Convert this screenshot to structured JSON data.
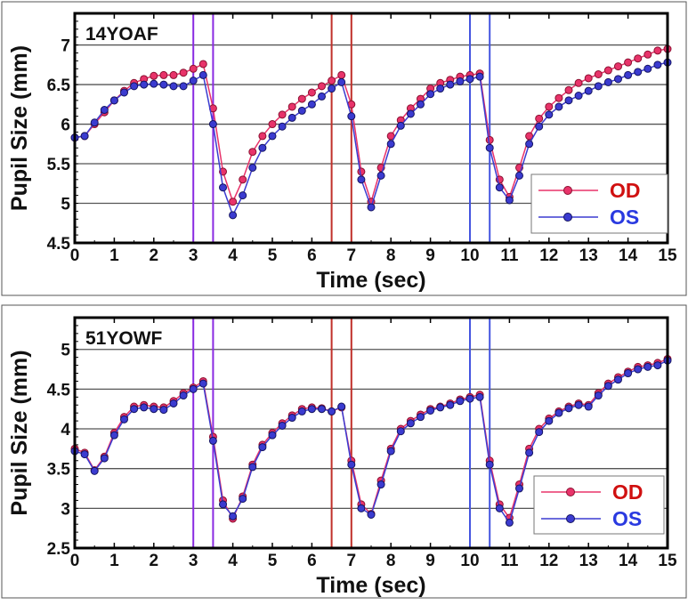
{
  "chart_data": [
    {
      "type": "scatter",
      "panel_label": "14YOAF",
      "xlabel": "Time (sec)",
      "ylabel": "Pupil Size (mm)",
      "xlim": [
        0,
        15
      ],
      "ylim": [
        4.5,
        7.4
      ],
      "xticks": [
        "0",
        "1",
        "2",
        "3",
        "4",
        "5",
        "6",
        "7",
        "8",
        "9",
        "10",
        "11",
        "12",
        "13",
        "14",
        "15"
      ],
      "yticks": [
        "4.5",
        "5",
        "5.5",
        "6",
        "6.5",
        "7"
      ],
      "grid": "horizontal",
      "legend_position": "bottom-right",
      "stimulus_intervals": [
        {
          "start": 3,
          "end": 3.5,
          "color": "#8a2be2"
        },
        {
          "start": 6.5,
          "end": 7,
          "color": "#c0302a"
        },
        {
          "start": 10,
          "end": 10.5,
          "color": "#4455e0"
        }
      ],
      "x": [
        0,
        0.25,
        0.5,
        0.75,
        1,
        1.25,
        1.5,
        1.75,
        2,
        2.25,
        2.5,
        2.75,
        3,
        3.25,
        3.5,
        3.75,
        4,
        4.25,
        4.5,
        4.75,
        5,
        5.25,
        5.5,
        5.75,
        6,
        6.25,
        6.5,
        6.75,
        7,
        7.25,
        7.5,
        7.75,
        8,
        8.25,
        8.5,
        8.75,
        9,
        9.25,
        9.5,
        9.75,
        10,
        10.25,
        10.5,
        10.75,
        11,
        11.25,
        11.5,
        11.75,
        12,
        12.25,
        12.5,
        12.75,
        13,
        13.25,
        13.5,
        13.75,
        14,
        14.25,
        14.5,
        14.75,
        15
      ],
      "series": [
        {
          "name": "OD",
          "color": "#e8336a",
          "text_color": "#d01010",
          "values": [
            5.83,
            5.85,
            6.0,
            6.15,
            6.3,
            6.42,
            6.52,
            6.57,
            6.61,
            6.62,
            6.62,
            6.65,
            6.7,
            6.76,
            6.2,
            5.4,
            5.02,
            5.3,
            5.65,
            5.85,
            6.0,
            6.12,
            6.22,
            6.32,
            6.4,
            6.48,
            6.55,
            6.62,
            6.25,
            5.4,
            5.02,
            5.45,
            5.85,
            6.05,
            6.2,
            6.32,
            6.45,
            6.52,
            6.56,
            6.6,
            6.62,
            6.64,
            5.8,
            5.3,
            5.08,
            5.45,
            5.85,
            6.07,
            6.22,
            6.33,
            6.43,
            6.52,
            6.58,
            6.63,
            6.68,
            6.73,
            6.78,
            6.83,
            6.88,
            6.93,
            6.95
          ]
        },
        {
          "name": "OS",
          "color": "#3b3bd0",
          "text_color": "#2a3ae0",
          "values": [
            5.83,
            5.85,
            6.02,
            6.18,
            6.3,
            6.4,
            6.48,
            6.5,
            6.51,
            6.5,
            6.48,
            6.48,
            6.55,
            6.62,
            6.0,
            5.2,
            4.85,
            5.1,
            5.45,
            5.7,
            5.85,
            5.97,
            6.08,
            6.17,
            6.25,
            6.35,
            6.45,
            6.53,
            6.1,
            5.3,
            4.95,
            5.35,
            5.75,
            5.98,
            6.13,
            6.25,
            6.38,
            6.45,
            6.5,
            6.54,
            6.57,
            6.6,
            5.7,
            5.2,
            5.04,
            5.35,
            5.75,
            5.97,
            6.12,
            6.22,
            6.3,
            6.36,
            6.42,
            6.48,
            6.53,
            6.57,
            6.62,
            6.66,
            6.7,
            6.75,
            6.78
          ]
        }
      ]
    },
    {
      "type": "scatter",
      "panel_label": "51YOWF",
      "xlabel": "Time (sec)",
      "ylabel": "Pupil Size (mm)",
      "xlim": [
        0,
        15
      ],
      "ylim": [
        2.5,
        5.4
      ],
      "xticks": [
        "0",
        "1",
        "2",
        "3",
        "4",
        "5",
        "6",
        "7",
        "8",
        "9",
        "10",
        "11",
        "12",
        "13",
        "14",
        "15"
      ],
      "yticks": [
        "2.5",
        "3",
        "3.5",
        "4",
        "4.5",
        "5"
      ],
      "grid": "horizontal",
      "legend_position": "bottom-right",
      "stimulus_intervals": [
        {
          "start": 3,
          "end": 3.5,
          "color": "#8a2be2"
        },
        {
          "start": 6.5,
          "end": 7,
          "color": "#c0302a"
        },
        {
          "start": 10,
          "end": 10.5,
          "color": "#4455e0"
        }
      ],
      "x": [
        0,
        0.25,
        0.5,
        0.75,
        1,
        1.25,
        1.5,
        1.75,
        2,
        2.25,
        2.5,
        2.75,
        3,
        3.25,
        3.5,
        3.75,
        4,
        4.25,
        4.5,
        4.75,
        5,
        5.25,
        5.5,
        5.75,
        6,
        6.25,
        6.5,
        6.75,
        7,
        7.25,
        7.5,
        7.75,
        8,
        8.25,
        8.5,
        8.75,
        9,
        9.25,
        9.5,
        9.75,
        10,
        10.25,
        10.5,
        10.75,
        11,
        11.25,
        11.5,
        11.75,
        12,
        12.25,
        12.5,
        12.75,
        13,
        13.25,
        13.5,
        13.75,
        14,
        14.25,
        14.5,
        14.75,
        15
      ],
      "series": [
        {
          "name": "OD",
          "color": "#e8336a",
          "text_color": "#d01010",
          "values": [
            3.75,
            3.7,
            3.48,
            3.65,
            3.95,
            4.15,
            4.28,
            4.3,
            4.28,
            4.27,
            4.35,
            4.45,
            4.52,
            4.6,
            3.9,
            3.1,
            2.87,
            3.15,
            3.55,
            3.8,
            3.95,
            4.07,
            4.17,
            4.25,
            4.27,
            4.26,
            4.22,
            4.27,
            3.6,
            3.05,
            2.93,
            3.35,
            3.75,
            4.0,
            4.1,
            4.18,
            4.25,
            4.28,
            4.32,
            4.37,
            4.4,
            4.43,
            3.6,
            3.05,
            2.88,
            3.3,
            3.75,
            4.0,
            4.13,
            4.22,
            4.28,
            4.32,
            4.3,
            4.45,
            4.57,
            4.65,
            4.72,
            4.78,
            4.8,
            4.83,
            4.88
          ]
        },
        {
          "name": "OS",
          "color": "#3b3bd0",
          "text_color": "#2a3ae0",
          "values": [
            3.72,
            3.68,
            3.47,
            3.63,
            3.92,
            4.12,
            4.25,
            4.27,
            4.25,
            4.24,
            4.32,
            4.42,
            4.5,
            4.57,
            3.85,
            3.05,
            2.9,
            3.12,
            3.52,
            3.77,
            3.92,
            4.04,
            4.14,
            4.22,
            4.25,
            4.25,
            4.22,
            4.28,
            3.55,
            3.0,
            2.92,
            3.3,
            3.72,
            3.97,
            4.07,
            4.15,
            4.23,
            4.27,
            4.3,
            4.35,
            4.38,
            4.4,
            3.55,
            3.0,
            2.82,
            3.25,
            3.7,
            3.96,
            4.1,
            4.2,
            4.26,
            4.3,
            4.28,
            4.42,
            4.54,
            4.62,
            4.7,
            4.75,
            4.78,
            4.8,
            4.86
          ]
        }
      ]
    }
  ]
}
